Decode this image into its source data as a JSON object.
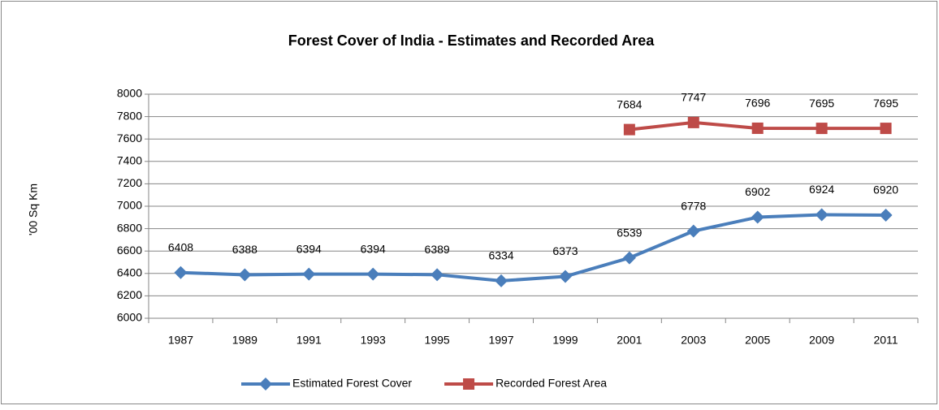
{
  "chart_data": {
    "type": "line",
    "title": "Forest Cover of India - Estimates and Recorded Area",
    "y_label": "'00 Sq Km",
    "categories": [
      "1987",
      "1989",
      "1991",
      "1993",
      "1995",
      "1997",
      "1999",
      "2001",
      "2003",
      "2005",
      "2009",
      "2011"
    ],
    "series": [
      {
        "name": "Estimated Forest Cover",
        "color": "#4a7ebb",
        "marker": "diamond",
        "values": [
          6408,
          6388,
          6394,
          6394,
          6389,
          6334,
          6373,
          6539,
          6778,
          6902,
          6924,
          6920
        ]
      },
      {
        "name": "Recorded Forest Area",
        "color": "#be4b48",
        "marker": "square",
        "values": [
          null,
          null,
          null,
          null,
          null,
          null,
          null,
          7684,
          7747,
          7696,
          7695,
          7695
        ]
      }
    ],
    "ylim": [
      6000,
      8000
    ],
    "yticks": [
      6000,
      6200,
      6400,
      6600,
      6800,
      7000,
      7200,
      7400,
      7600,
      7800,
      8000
    ],
    "grid": true,
    "legend": "bottom"
  }
}
